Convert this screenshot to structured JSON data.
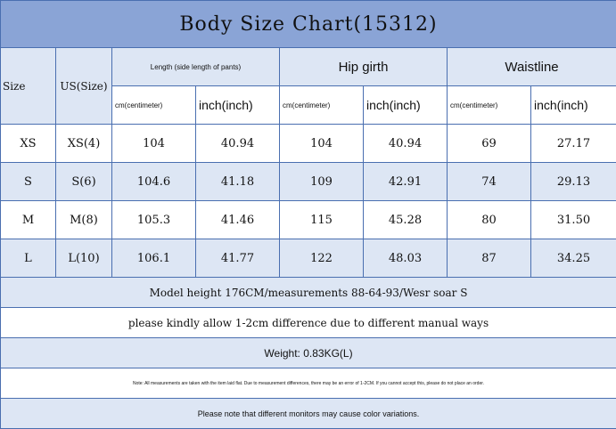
{
  "title": "Body Size Chart(15312)",
  "headers": {
    "size": "Size",
    "us_size": "US(Size)",
    "length": "Length (side length of pants)",
    "hip": "Hip girth",
    "waist": "Waistline",
    "cm": "cm(centimeter)",
    "inch": "inch(inch)"
  },
  "rows": [
    [
      "XS",
      "XS(4)",
      "104",
      "40.94",
      "104",
      "40.94",
      "69",
      "27.17"
    ],
    [
      "S",
      "S(6)",
      "104.6",
      "41.18",
      "109",
      "42.91",
      "74",
      "29.13"
    ],
    [
      "M",
      "M(8)",
      "105.3",
      "41.46",
      "115",
      "45.28",
      "80",
      "31.50"
    ],
    [
      "L",
      "L(10)",
      "106.1",
      "41.77",
      "122",
      "48.03",
      "87",
      "34.25"
    ]
  ],
  "notes": {
    "model": "Model height 176CM/measurements 88-64-93/Wesr soar S",
    "allow": "please kindly allow 1-2cm difference due to different manual ways",
    "weight": "Weight: 0.83KG(L)",
    "measure": "Note: All measurements are taken with the item laid flat. Due to measurement differences, there may be an error of 1-2CM. If you cannot accept this, please do not place an order.",
    "monitor": "Please note that different monitors may cause color variations."
  }
}
